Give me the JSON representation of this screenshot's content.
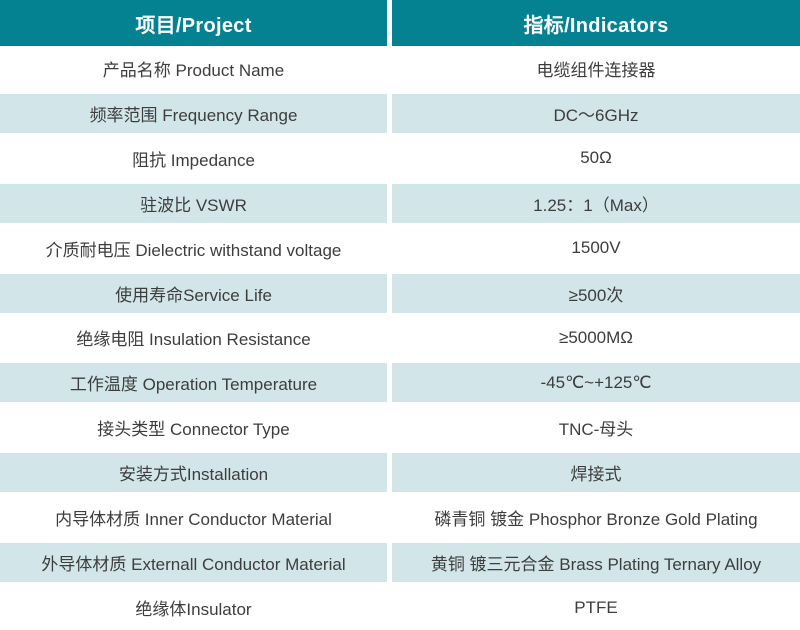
{
  "colors": {
    "header_bg": "#048291",
    "shaded_row_bg": "#d2e6e9",
    "row_bg": "#ffffff",
    "header_text": "#ffffff",
    "body_text": "#3d3d3d",
    "separator": "#ffffff"
  },
  "table": {
    "header": {
      "project": "项目/Project",
      "indicators": "指标/Indicators"
    },
    "rows": [
      {
        "project": "产品名称 Product Name",
        "indicator": "电缆组件连接器",
        "shaded": false
      },
      {
        "project": "频率范围 Frequency Range",
        "indicator": "DC～6GHz",
        "shaded": true
      },
      {
        "project": "阻抗 Impedance",
        "indicator": "50Ω",
        "shaded": false
      },
      {
        "project": "驻波比 VSWR",
        "indicator": "1.25：1（Max）",
        "shaded": true
      },
      {
        "project": "介质耐电压 Dielectric withstand voltage",
        "indicator": "1500V",
        "shaded": false
      },
      {
        "project": "使用寿命Service Life",
        "indicator": "≥500次",
        "shaded": true
      },
      {
        "project": "绝缘电阻 Insulation Resistance",
        "indicator": "≥5000MΩ",
        "shaded": false
      },
      {
        "project": "工作温度 Operation Temperature",
        "indicator": "-45℃~+125℃",
        "shaded": true
      },
      {
        "project": "接头类型  Connector Type",
        "indicator": "TNC-母头",
        "shaded": false
      },
      {
        "project": "安装方式Installation",
        "indicator": "焊接式",
        "shaded": true
      },
      {
        "project": "内导体材质 Inner Conductor Material",
        "indicator": "磷青铜 镀金 Phosphor Bronze Gold Plating",
        "shaded": false
      },
      {
        "project": "外导体材质 Externall Conductor Material",
        "indicator": "黄铜 镀三元合金 Brass Plating Ternary Alloy",
        "shaded": true
      },
      {
        "project": "绝缘体Insulator",
        "indicator": "PTFE",
        "shaded": false
      }
    ]
  }
}
